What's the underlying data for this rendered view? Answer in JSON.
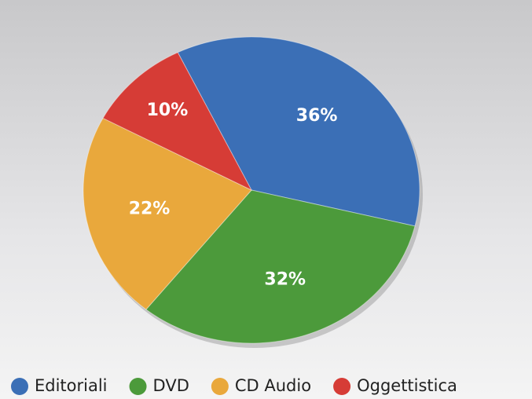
{
  "chart_data": {
    "type": "pie",
    "categories": [
      "Editoriali",
      "DVD",
      "CD Audio",
      "Oggettistica"
    ],
    "values": [
      36,
      32,
      22,
      10
    ],
    "value_labels": [
      "36%",
      "32%",
      "22%",
      "10%"
    ],
    "colors": [
      "#3b6fb6",
      "#4c9a3b",
      "#e9a83c",
      "#d63c36"
    ],
    "legend": "bottom"
  }
}
